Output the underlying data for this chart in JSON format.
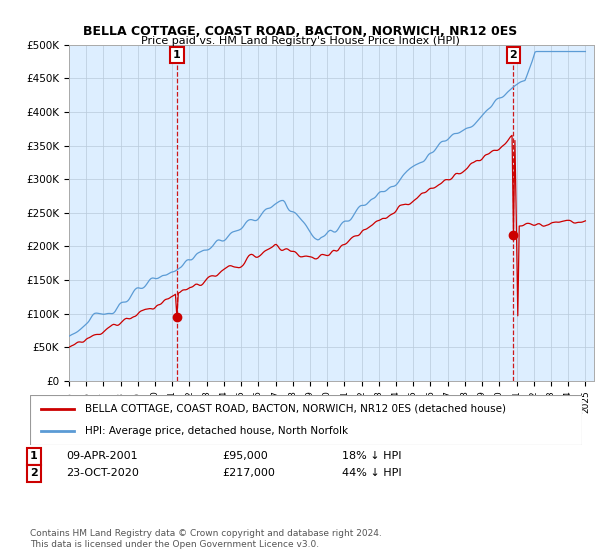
{
  "title": "BELLA COTTAGE, COAST ROAD, BACTON, NORWICH, NR12 0ES",
  "subtitle": "Price paid vs. HM Land Registry's House Price Index (HPI)",
  "ylim": [
    0,
    500000
  ],
  "yticks": [
    0,
    50000,
    100000,
    150000,
    200000,
    250000,
    300000,
    350000,
    400000,
    450000,
    500000
  ],
  "ytick_labels": [
    "£0",
    "£50K",
    "£100K",
    "£150K",
    "£200K",
    "£250K",
    "£300K",
    "£350K",
    "£400K",
    "£450K",
    "£500K"
  ],
  "hpi_color": "#5b9bd5",
  "price_color": "#cc0000",
  "plot_bg_color": "#ddeeff",
  "sale1_date": 2001.27,
  "sale1_price": 95000,
  "sale1_label": "1",
  "sale2_date": 2020.81,
  "sale2_price": 217000,
  "sale2_label": "2",
  "legend_property": "BELLA COTTAGE, COAST ROAD, BACTON, NORWICH, NR12 0ES (detached house)",
  "legend_hpi": "HPI: Average price, detached house, North Norfolk",
  "footer": "Contains HM Land Registry data © Crown copyright and database right 2024.\nThis data is licensed under the Open Government Licence v3.0.",
  "background_color": "#ffffff",
  "grid_color": "#bbccdd"
}
